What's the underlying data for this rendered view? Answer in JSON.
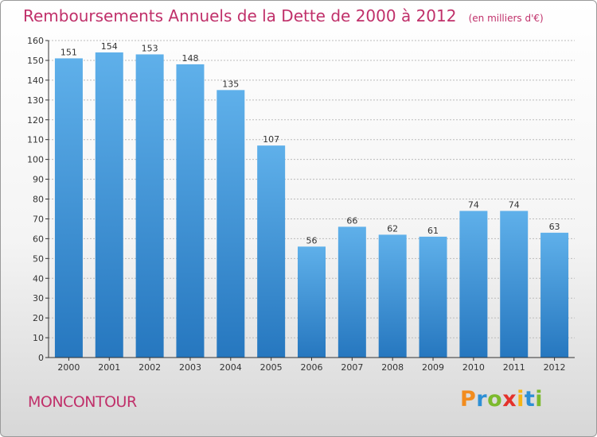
{
  "title": "Remboursements Annuels de la Dette de 2000 à 2012",
  "subtitle": "(en milliers d'€)",
  "commune": "MONCONTOUR",
  "logo": {
    "text": "Proxiti",
    "letters": [
      "P",
      "r",
      "o",
      "x",
      "i",
      "t",
      "i"
    ],
    "colors": [
      "#f28c1e",
      "#2d8fd5",
      "#7cba2d",
      "#e4322b",
      "#f6b516",
      "#2d8fd5",
      "#7cba2d"
    ]
  },
  "colors": {
    "bar_top": "#5fb0ea",
    "bar_bottom": "#2677bf",
    "title": "#c0306a",
    "axis": "#333333",
    "grid": "#bbbbbb"
  },
  "chart_data": {
    "type": "bar",
    "title": "Remboursements Annuels de la Dette de 2000 à 2012",
    "ylabel": "(en milliers d'€)",
    "xlabel": "",
    "categories": [
      "2000",
      "2001",
      "2002",
      "2003",
      "2004",
      "2005",
      "2006",
      "2007",
      "2008",
      "2009",
      "2010",
      "2011",
      "2012"
    ],
    "values": [
      151,
      154,
      153,
      148,
      135,
      107,
      56,
      66,
      62,
      61,
      74,
      74,
      63
    ],
    "ylim": [
      0,
      160
    ],
    "yticks": [
      0,
      10,
      20,
      30,
      40,
      50,
      60,
      70,
      80,
      90,
      100,
      110,
      120,
      130,
      140,
      150,
      160
    ],
    "grid": true,
    "legend": "none"
  }
}
